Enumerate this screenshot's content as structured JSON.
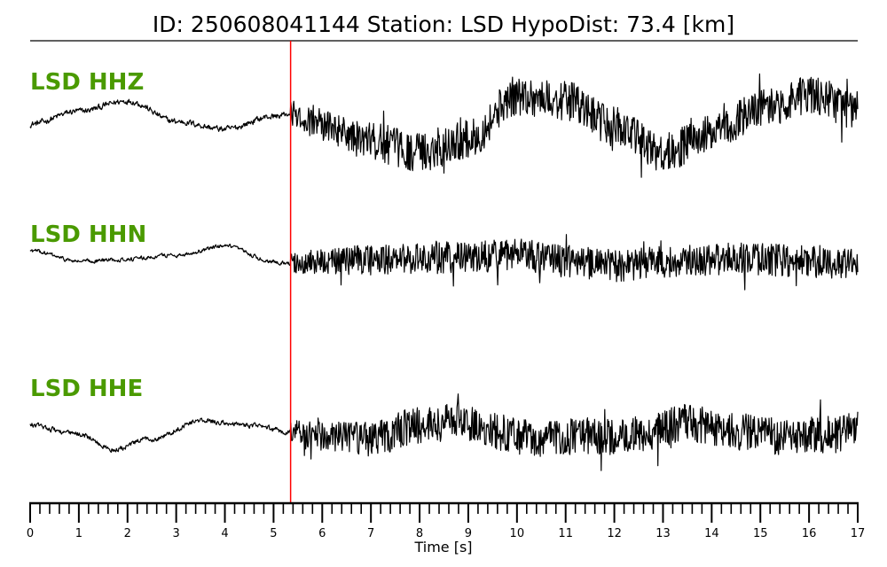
{
  "header": {
    "title": "ID: 250608041144   Station: LSD   HypoDist:    73.4 [km]"
  },
  "chart_data": {
    "type": "line",
    "title": "ID: 250608041144   Station: LSD   HypoDist:    73.4 [km]",
    "xlabel": "Time [s]",
    "ylabel": "",
    "xlim": [
      0,
      17
    ],
    "x_ticks": [
      "0",
      "1",
      "2",
      "3",
      "4",
      "5",
      "6",
      "7",
      "8",
      "9",
      "10",
      "11",
      "12",
      "13",
      "14",
      "15",
      "16",
      "17"
    ],
    "minor_tick_step": 0.2,
    "grid": false,
    "legend": "none",
    "pick_time": 5.35,
    "pick_color": "#ff0000",
    "label_color": "#4a9a00",
    "trace_color": "#000000",
    "series": [
      {
        "name": "LSD HHZ",
        "pre_noise": 0.05,
        "post_noise": 0.38,
        "envelope": [
          [
            0,
            0.0
          ],
          [
            1,
            0.25
          ],
          [
            2,
            0.45
          ],
          [
            3,
            0.05
          ],
          [
            4,
            -0.1
          ],
          [
            5,
            0.15
          ],
          [
            5.35,
            0.2
          ],
          [
            6,
            -0.05
          ],
          [
            7,
            -0.35
          ],
          [
            8,
            -0.55
          ],
          [
            9,
            -0.3
          ],
          [
            10,
            0.55
          ],
          [
            11,
            0.45
          ],
          [
            12,
            -0.05
          ],
          [
            13,
            -0.55
          ],
          [
            14,
            -0.2
          ],
          [
            15,
            0.3
          ],
          [
            16,
            0.55
          ],
          [
            17,
            0.3
          ]
        ]
      },
      {
        "name": "LSD HHN",
        "pre_noise": 0.04,
        "post_noise": 0.38,
        "envelope": [
          [
            0,
            0.25
          ],
          [
            1,
            0.0
          ],
          [
            2,
            0.05
          ],
          [
            3,
            0.15
          ],
          [
            4,
            0.35
          ],
          [
            5,
            0.0
          ],
          [
            5.35,
            -0.05
          ],
          [
            6,
            0.0
          ],
          [
            7,
            0.05
          ],
          [
            8,
            0.05
          ],
          [
            9,
            0.1
          ],
          [
            10,
            0.15
          ],
          [
            11,
            0.0
          ],
          [
            12,
            -0.1
          ],
          [
            13,
            0.0
          ],
          [
            14,
            0.05
          ],
          [
            15,
            0.05
          ],
          [
            16,
            0.0
          ],
          [
            17,
            -0.05
          ]
        ]
      },
      {
        "name": "LSD HHE",
        "pre_noise": 0.05,
        "post_noise": 0.42,
        "envelope": [
          [
            0,
            0.2
          ],
          [
            1,
            0.0
          ],
          [
            1.7,
            -0.35
          ],
          [
            2.5,
            -0.1
          ],
          [
            3.5,
            0.3
          ],
          [
            4.5,
            0.2
          ],
          [
            5.35,
            0.05
          ],
          [
            6,
            -0.05
          ],
          [
            7,
            -0.1
          ],
          [
            8,
            0.2
          ],
          [
            8.7,
            0.35
          ],
          [
            9.5,
            0.05
          ],
          [
            10.5,
            -0.1
          ],
          [
            11.5,
            -0.05
          ],
          [
            12.5,
            -0.05
          ],
          [
            13.5,
            0.25
          ],
          [
            14.5,
            0.05
          ],
          [
            15.5,
            -0.05
          ],
          [
            16.5,
            0.0
          ],
          [
            17,
            0.1
          ]
        ]
      }
    ]
  }
}
